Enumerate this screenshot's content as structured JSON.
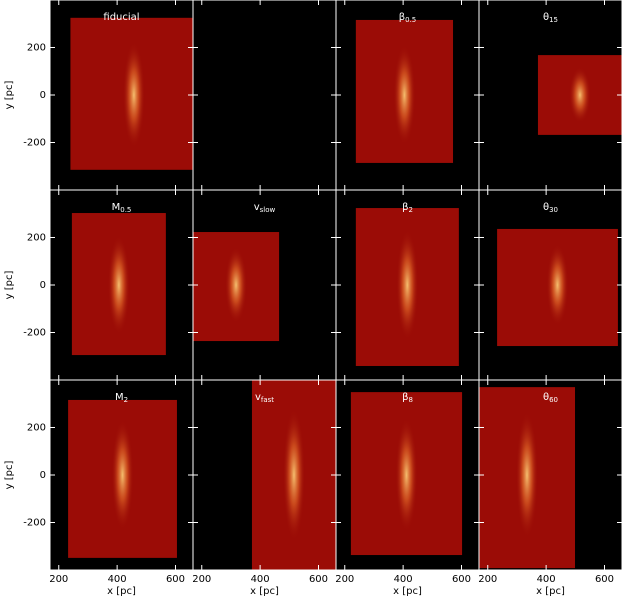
{
  "chart_data": {
    "type": "image-grid",
    "xlabel": "x [pc]",
    "ylabel": "y [pc]",
    "xlim": [
      170,
      660
    ],
    "ylim": [
      -400,
      400
    ],
    "xticks": [
      200,
      400,
      600
    ],
    "yticks": [
      -200,
      0,
      200
    ],
    "color": "#9b0c06",
    "panels": [
      {
        "title": "fiducial",
        "extent": [
          240,
          675,
          -315,
          325
        ]
      },
      null,
      {
        "title": "β",
        "title_sub": "0.5",
        "extent": [
          238,
          571,
          -286,
          316
        ]
      },
      {
        "title": "θ",
        "title_sub": "15",
        "extent": [
          372,
          660,
          -168,
          168
        ]
      },
      {
        "title": "M",
        "title_sub": "0.5",
        "extent": [
          245,
          567,
          -295,
          303
        ]
      },
      {
        "title": "v",
        "title_sub": "slow",
        "extent": [
          170,
          465,
          -236,
          223
        ]
      },
      {
        "title": "β",
        "title_sub": "2",
        "extent": [
          238,
          591,
          -341,
          324
        ]
      },
      {
        "title": "θ",
        "title_sub": "30",
        "extent": [
          232,
          646,
          -257,
          236
        ]
      },
      {
        "title": "M",
        "title_sub": "2",
        "extent": [
          232,
          605,
          -349,
          316
        ]
      },
      {
        "title": "v",
        "title_sub": "fast",
        "extent": [
          372,
          660,
          -400,
          400
        ]
      },
      {
        "title": "β",
        "title_sub": "8",
        "extent": [
          221,
          602,
          -337,
          349
        ]
      },
      {
        "title": "θ",
        "title_sub": "60",
        "extent": [
          170,
          499,
          -392,
          370
        ]
      }
    ]
  }
}
